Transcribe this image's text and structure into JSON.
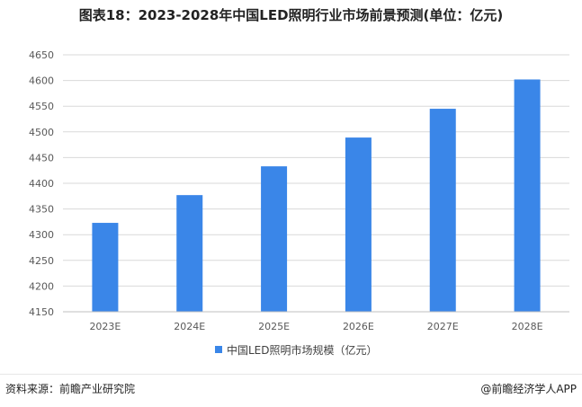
{
  "title": "图表18：2023-2028年中国LED照明行业市场前景预测(单位：亿元)",
  "footer": {
    "source": "资料来源：前瞻产业研究院",
    "brand": "@前瞻经济学人APP"
  },
  "colors": {
    "bar": "#3a86e8",
    "grid": "#d9d9d9",
    "axis": "#bfbfbf"
  },
  "chart_data": {
    "type": "bar",
    "title": "图表18：2023-2028年中国LED照明行业市场前景预测(单位：亿元)",
    "categories": [
      "2023E",
      "2024E",
      "2025E",
      "2026E",
      "2027E",
      "2028E"
    ],
    "series": [
      {
        "name": "中国LED照明市场规模（亿元）",
        "values": [
          4323,
          4377,
          4433,
          4489,
          4545,
          4602
        ]
      }
    ],
    "yticks": [
      "4150",
      "4200",
      "4250",
      "4300",
      "4350",
      "4400",
      "4450",
      "4500",
      "4550",
      "4600",
      "4650"
    ],
    "ylim": [
      4150,
      4650
    ],
    "grid": true,
    "legend_position": "bottom"
  }
}
